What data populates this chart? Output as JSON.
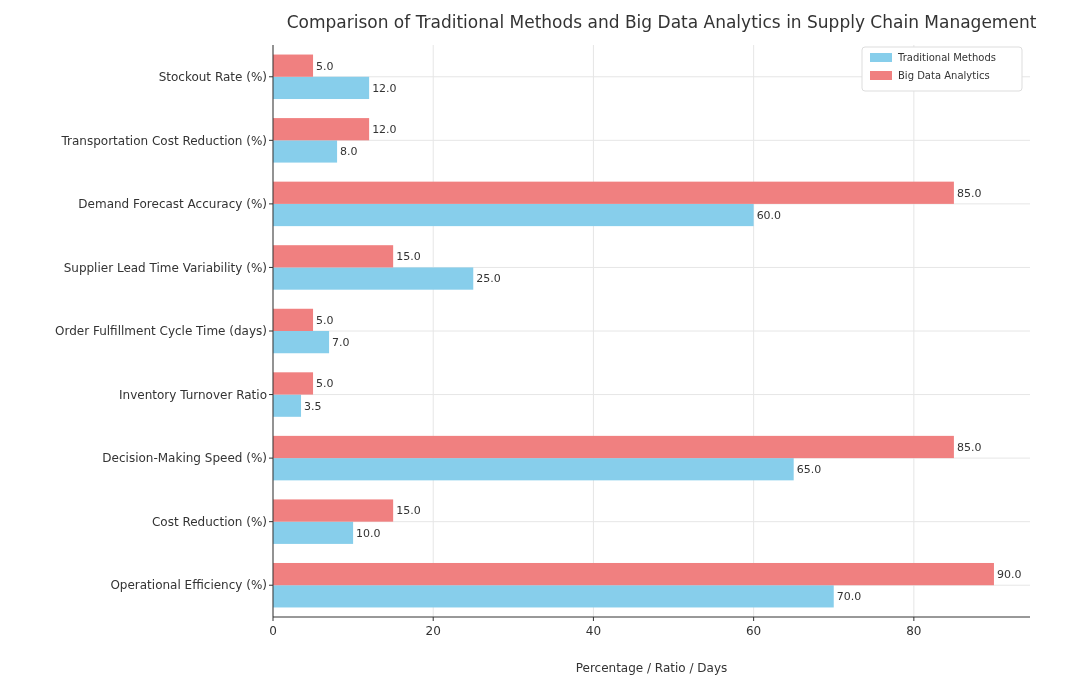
{
  "chart_data": {
    "type": "bar",
    "orientation": "horizontal",
    "title": "Comparison of Traditional Methods and Big Data Analytics in Supply Chain Management",
    "xlabel": "Percentage / Ratio / Days",
    "categories": [
      "Stockout Rate (%)",
      "Transportation Cost Reduction (%)",
      "Demand Forecast Accuracy (%)",
      "Supplier Lead Time Variability (%)",
      "Order Fulfillment Cycle Time (days)",
      "Inventory Turnover Ratio",
      "Decision-Making Speed (%)",
      "Cost Reduction (%)",
      "Operational Efficiency (%)"
    ],
    "series": [
      {
        "name": "Traditional Methods",
        "color": "#87ceeb",
        "values": [
          12,
          8,
          60,
          25,
          7,
          3.5,
          65,
          10,
          70
        ],
        "value_labels": [
          "12.0",
          "8.0",
          "60.0",
          "25.0",
          "7.0",
          "3.5",
          "65.0",
          "10.0",
          "70.0"
        ]
      },
      {
        "name": "Big Data Analytics",
        "color": "#f08080",
        "values": [
          5,
          12,
          85,
          15,
          5,
          5,
          85,
          15,
          90
        ],
        "value_labels": [
          "5.0",
          "12.0",
          "85.0",
          "15.0",
          "5.0",
          "5.0",
          "85.0",
          "15.0",
          "90.0"
        ]
      }
    ],
    "xlim": [
      0,
      94.5
    ],
    "xticks": [
      0,
      20,
      40,
      60,
      80
    ],
    "grid": true,
    "legend": "top right"
  }
}
